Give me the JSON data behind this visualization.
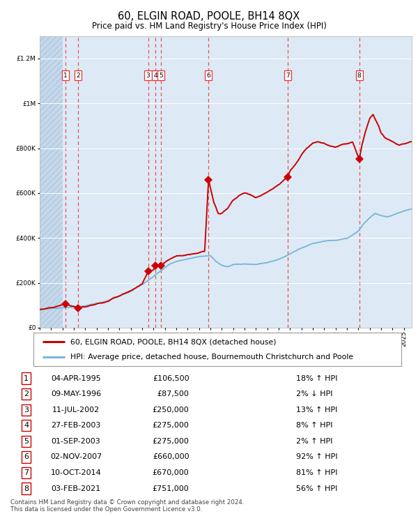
{
  "title": "60, ELGIN ROAD, POOLE, BH14 8QX",
  "subtitle": "Price paid vs. HM Land Registry's House Price Index (HPI)",
  "transactions": [
    {
      "num": 1,
      "date": "04-APR-1995",
      "year": 1995.27,
      "price": 106500,
      "pct": "18%",
      "dir": "↑"
    },
    {
      "num": 2,
      "date": "09-MAY-1996",
      "year": 1996.36,
      "price": 87500,
      "pct": "2%",
      "dir": "↓"
    },
    {
      "num": 3,
      "date": "11-JUL-2002",
      "year": 2002.53,
      "price": 250000,
      "pct": "13%",
      "dir": "↑"
    },
    {
      "num": 4,
      "date": "27-FEB-2003",
      "year": 2003.16,
      "price": 275000,
      "pct": "8%",
      "dir": "↑"
    },
    {
      "num": 5,
      "date": "01-SEP-2003",
      "year": 2003.67,
      "price": 275000,
      "pct": "2%",
      "dir": "↑"
    },
    {
      "num": 6,
      "date": "02-NOV-2007",
      "year": 2007.84,
      "price": 660000,
      "pct": "92%",
      "dir": "↑"
    },
    {
      "num": 7,
      "date": "10-OCT-2014",
      "year": 2014.78,
      "price": 670000,
      "pct": "81%",
      "dir": "↑"
    },
    {
      "num": 8,
      "date": "03-FEB-2021",
      "year": 2021.09,
      "price": 751000,
      "pct": "56%",
      "dir": "↑"
    }
  ],
  "hpi_color": "#7ab8d9",
  "price_color": "#cc0000",
  "marker_color": "#cc0000",
  "dashed_color": "#ee3333",
  "background_chart": "#ddeaf5",
  "background_hatch": "#c5d8eb",
  "grid_color": "#ffffff",
  "ylim": [
    0,
    1300000
  ],
  "xlim_start": 1993.0,
  "xlim_end": 2025.7,
  "footer": "Contains HM Land Registry data © Crown copyright and database right 2024.\nThis data is licensed under the Open Government Licence v3.0.",
  "legend_property": "60, ELGIN ROAD, POOLE, BH14 8QX (detached house)",
  "legend_hpi": "HPI: Average price, detached house, Bournemouth Christchurch and Poole",
  "hpi_anchors": [
    [
      1993.0,
      82000
    ],
    [
      1994.0,
      87000
    ],
    [
      1995.0,
      89000
    ],
    [
      1996.0,
      91000
    ],
    [
      1997.0,
      98000
    ],
    [
      1998.0,
      108000
    ],
    [
      1999.0,
      120000
    ],
    [
      2000.0,
      140000
    ],
    [
      2001.0,
      162000
    ],
    [
      2002.0,
      192000
    ],
    [
      2003.0,
      228000
    ],
    [
      2004.0,
      268000
    ],
    [
      2004.5,
      285000
    ],
    [
      2005.0,
      295000
    ],
    [
      2006.0,
      305000
    ],
    [
      2007.0,
      318000
    ],
    [
      2008.0,
      320000
    ],
    [
      2008.5,
      295000
    ],
    [
      2009.0,
      278000
    ],
    [
      2009.5,
      272000
    ],
    [
      2010.0,
      280000
    ],
    [
      2011.0,
      285000
    ],
    [
      2012.0,
      282000
    ],
    [
      2013.0,
      290000
    ],
    [
      2014.0,
      305000
    ],
    [
      2015.0,
      330000
    ],
    [
      2016.0,
      355000
    ],
    [
      2017.0,
      375000
    ],
    [
      2018.0,
      385000
    ],
    [
      2019.0,
      390000
    ],
    [
      2020.0,
      398000
    ],
    [
      2021.0,
      430000
    ],
    [
      2021.5,
      465000
    ],
    [
      2022.0,
      490000
    ],
    [
      2022.5,
      510000
    ],
    [
      2023.0,
      500000
    ],
    [
      2023.5,
      495000
    ],
    [
      2024.0,
      500000
    ],
    [
      2024.5,
      510000
    ],
    [
      2025.0,
      520000
    ],
    [
      2025.7,
      530000
    ]
  ],
  "prop_anchors": [
    [
      1993.0,
      80000
    ],
    [
      1994.5,
      95000
    ],
    [
      1995.27,
      106500
    ],
    [
      1996.36,
      87500
    ],
    [
      1997.0,
      92000
    ],
    [
      1998.0,
      105000
    ],
    [
      1999.0,
      120000
    ],
    [
      2000.0,
      142000
    ],
    [
      2001.0,
      165000
    ],
    [
      2002.0,
      195000
    ],
    [
      2002.53,
      250000
    ],
    [
      2003.0,
      258000
    ],
    [
      2003.16,
      275000
    ],
    [
      2003.67,
      275000
    ],
    [
      2004.0,
      290000
    ],
    [
      2004.5,
      310000
    ],
    [
      2005.0,
      318000
    ],
    [
      2006.0,
      325000
    ],
    [
      2007.0,
      335000
    ],
    [
      2007.5,
      340000
    ],
    [
      2007.84,
      660000
    ],
    [
      2008.3,
      560000
    ],
    [
      2008.7,
      510000
    ],
    [
      2009.0,
      510000
    ],
    [
      2009.5,
      530000
    ],
    [
      2010.0,
      570000
    ],
    [
      2010.5,
      590000
    ],
    [
      2011.0,
      600000
    ],
    [
      2011.5,
      595000
    ],
    [
      2012.0,
      580000
    ],
    [
      2012.5,
      590000
    ],
    [
      2013.0,
      605000
    ],
    [
      2013.5,
      620000
    ],
    [
      2014.0,
      640000
    ],
    [
      2014.78,
      670000
    ],
    [
      2015.0,
      700000
    ],
    [
      2015.5,
      730000
    ],
    [
      2016.0,
      770000
    ],
    [
      2016.5,
      800000
    ],
    [
      2017.0,
      820000
    ],
    [
      2017.5,
      830000
    ],
    [
      2018.0,
      820000
    ],
    [
      2018.5,
      810000
    ],
    [
      2019.0,
      805000
    ],
    [
      2019.5,
      815000
    ],
    [
      2020.0,
      820000
    ],
    [
      2020.5,
      830000
    ],
    [
      2021.09,
      751000
    ],
    [
      2021.3,
      810000
    ],
    [
      2021.6,
      870000
    ],
    [
      2022.0,
      930000
    ],
    [
      2022.3,
      950000
    ],
    [
      2022.5,
      930000
    ],
    [
      2022.8,
      900000
    ],
    [
      2023.0,
      870000
    ],
    [
      2023.3,
      850000
    ],
    [
      2023.6,
      840000
    ],
    [
      2024.0,
      830000
    ],
    [
      2024.3,
      820000
    ],
    [
      2024.6,
      815000
    ],
    [
      2025.0,
      820000
    ],
    [
      2025.7,
      830000
    ]
  ]
}
